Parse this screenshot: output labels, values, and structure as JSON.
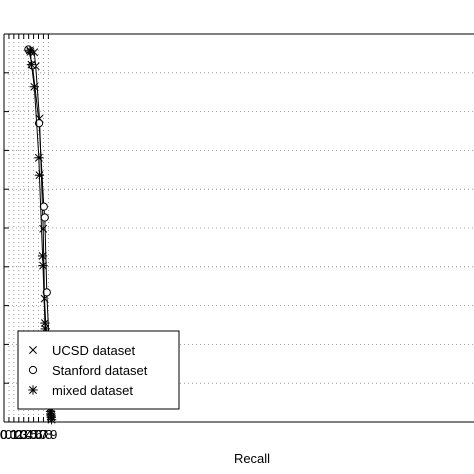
{
  "chart_data": {
    "type": "line",
    "title": "",
    "xlabel": "Recall",
    "ylabel": "",
    "xlim": [
      0,
      0.97
    ],
    "ylim": [
      0,
      1
    ],
    "x_ticks": [
      "0",
      "0.1",
      "0.2",
      "0.3",
      "0.4",
      "0.5",
      "0.6",
      "0.7",
      "0.8",
      "0.9"
    ],
    "grid": true,
    "legend_position": "bottom-left",
    "series": [
      {
        "name": "UCSD dataset",
        "marker": "x",
        "color": "#000000",
        "points": [
          [
            0.612,
            0.953
          ],
          [
            0.643,
            0.917
          ],
          [
            0.72,
            0.782
          ],
          [
            0.795,
            0.498
          ],
          [
            0.822,
            0.318
          ],
          [
            0.873,
            0.186
          ],
          [
            0.91,
            0.129
          ],
          [
            0.935,
            0.102
          ],
          [
            0.95,
            0.087
          ],
          [
            0.96,
            0.078
          ],
          [
            0.967,
            0.071
          ]
        ]
      },
      {
        "name": "Stanford dataset",
        "marker": "o",
        "color": "#000000",
        "points": [
          [
            0.494,
            0.96
          ],
          [
            0.576,
            0.919
          ],
          [
            0.711,
            0.77
          ],
          [
            0.808,
            0.555
          ],
          [
            0.827,
            0.527
          ],
          [
            0.868,
            0.334
          ],
          [
            0.914,
            0.203
          ],
          [
            0.925,
            0.199
          ],
          [
            0.94,
            0.134
          ],
          [
            0.96,
            0.098
          ],
          [
            0.967,
            0.083
          ]
        ]
      },
      {
        "name": "mixed dataset",
        "marker": "asterisk",
        "color": "#000000",
        "points": [
          [
            0.526,
            0.958
          ],
          [
            0.536,
            0.954
          ],
          [
            0.557,
            0.921
          ],
          [
            0.614,
            0.864
          ],
          [
            0.708,
            0.681
          ],
          [
            0.719,
            0.636
          ],
          [
            0.782,
            0.428
          ],
          [
            0.792,
            0.403
          ],
          [
            0.83,
            0.255
          ],
          [
            0.838,
            0.24
          ],
          [
            0.858,
            0.17
          ],
          [
            0.875,
            0.158
          ],
          [
            0.884,
            0.146
          ],
          [
            0.893,
            0.127
          ],
          [
            0.902,
            0.108
          ],
          [
            0.91,
            0.084
          ],
          [
            0.92,
            0.066
          ],
          [
            0.925,
            0.056
          ],
          [
            0.932,
            0.047
          ],
          [
            0.938,
            0.036
          ],
          [
            0.945,
            0.027
          ],
          [
            0.95,
            0.021
          ],
          [
            0.955,
            0.016
          ],
          [
            0.96,
            0.012
          ],
          [
            0.965,
            0.006
          ]
        ]
      }
    ]
  }
}
